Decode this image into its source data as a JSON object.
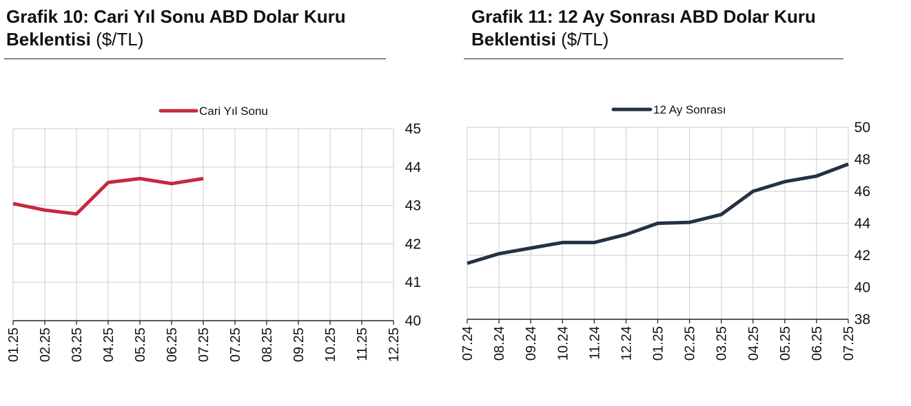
{
  "charts": [
    {
      "title_bold": "Grafik 10: Cari Yıl Sonu ABD Dolar Kuru Beklentisi",
      "title_unit": "($/TL)"
    },
    {
      "title_bold": "Grafik 11: 12 Ay Sonrası ABD Dolar Kuru Beklentisi",
      "title_unit": "($/TL)"
    }
  ],
  "chart_data": [
    {
      "type": "line",
      "categories": [
        "01.25",
        "02.25",
        "03.25",
        "04.25",
        "05.25",
        "06.25",
        "07.25",
        "07.25",
        "08.25",
        "09.25",
        "10.25",
        "11.25",
        "12.25"
      ],
      "series": [
        {
          "name": "Cari Yıl Sonu",
          "color": "#c8283e",
          "values": [
            43.05,
            42.88,
            42.78,
            43.6,
            43.7,
            43.57,
            43.7,
            null,
            null,
            null,
            null,
            null,
            null
          ]
        }
      ],
      "ylim": [
        40,
        45
      ],
      "yticks": [
        40,
        41,
        42,
        43,
        44,
        45
      ],
      "y_axis_side": "right",
      "grid": true,
      "legend_position": "top-center"
    },
    {
      "type": "line",
      "categories": [
        "07.24",
        "08.24",
        "09.24",
        "10.24",
        "11.24",
        "12.24",
        "01.25",
        "02.25",
        "03.25",
        "04.25",
        "05.25",
        "06.25",
        "07.25"
      ],
      "series": [
        {
          "name": "12 Ay Sonrası",
          "color": "#253143",
          "values": [
            41.5,
            42.1,
            42.45,
            42.8,
            42.8,
            43.3,
            44.0,
            44.06,
            44.55,
            46.0,
            46.6,
            46.95,
            47.7
          ]
        }
      ],
      "ylim": [
        38,
        50
      ],
      "yticks": [
        38,
        40,
        42,
        44,
        46,
        48,
        50
      ],
      "y_axis_side": "right",
      "grid": true,
      "legend_position": "top-center"
    }
  ]
}
